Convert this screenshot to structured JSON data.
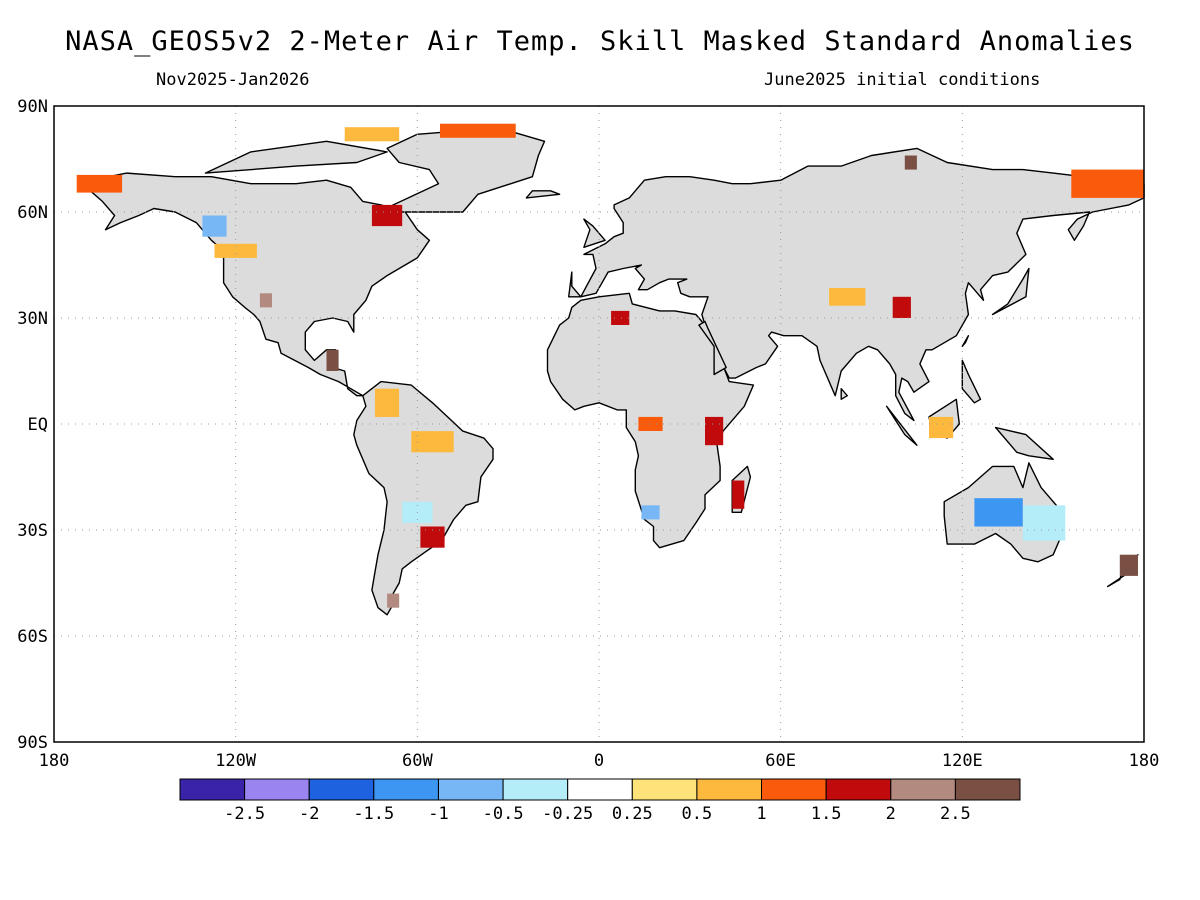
{
  "title": "NASA_GEOS5v2 2-Meter Air Temp. Skill Masked Standard Anomalies",
  "subtitle_left": "Nov2025-Jan2026",
  "subtitle_right": "June2025 initial conditions",
  "map": {
    "projection": "cylindrical equidistant",
    "lon_range": [
      -180,
      180
    ],
    "lat_range": [
      -90,
      90
    ],
    "gridlines": "dotted",
    "land_color": "#dcdcdc",
    "lat_ticks": [
      {
        "label": "90N",
        "lat": 90
      },
      {
        "label": "60N",
        "lat": 60
      },
      {
        "label": "30N",
        "lat": 30
      },
      {
        "label": "EQ",
        "lat": 0
      },
      {
        "label": "30S",
        "lat": -30
      },
      {
        "label": "60S",
        "lat": -60
      },
      {
        "label": "90S",
        "lat": -90
      }
    ],
    "lon_ticks": [
      {
        "label": "180",
        "lon": -180
      },
      {
        "label": "120W",
        "lon": -120
      },
      {
        "label": "60W",
        "lon": -60
      },
      {
        "label": "0",
        "lon": 0
      },
      {
        "label": "60E",
        "lon": 60
      },
      {
        "label": "120E",
        "lon": 120
      },
      {
        "label": "180",
        "lon": 180
      }
    ]
  },
  "colorbar": {
    "colors": [
      "#3a23a8",
      "#9a85f0",
      "#1f62e0",
      "#3d96f2",
      "#77b7f5",
      "#b4ecf8",
      "#ffffff",
      "#fde37a",
      "#fdb93d",
      "#fa5a0c",
      "#c00a0c",
      "#b28a80",
      "#7a5044"
    ],
    "labels": [
      "-2.5",
      "-2",
      "-1.5",
      "-1",
      "-0.5",
      "-0.25",
      "0.25",
      "0.5",
      "1",
      "1.5",
      "2",
      "2.5"
    ]
  },
  "anomaly_regions": [
    {
      "lon": -75,
      "lat": 82,
      "w": 18,
      "h": 4,
      "level": "0.5"
    },
    {
      "lon": -40,
      "lat": 83,
      "w": 25,
      "h": 4,
      "level": "1"
    },
    {
      "lon": -165,
      "lat": 68,
      "w": 15,
      "h": 5,
      "level": "1"
    },
    {
      "lon": -127,
      "lat": 56,
      "w": 8,
      "h": 6,
      "level": "-0.5"
    },
    {
      "lon": -120,
      "lat": 49,
      "w": 14,
      "h": 4,
      "level": "0.5"
    },
    {
      "lon": -110,
      "lat": 35,
      "w": 4,
      "h": 4,
      "level": "2"
    },
    {
      "lon": -88,
      "lat": 18,
      "w": 4,
      "h": 6,
      "level": "2.5"
    },
    {
      "lon": -70,
      "lat": 59,
      "w": 10,
      "h": 6,
      "level": "1.5"
    },
    {
      "lon": -70,
      "lat": 6,
      "w": 8,
      "h": 8,
      "level": "0.5"
    },
    {
      "lon": -55,
      "lat": -5,
      "w": 14,
      "h": 6,
      "level": "0.5"
    },
    {
      "lon": -60,
      "lat": -25,
      "w": 10,
      "h": 6,
      "level": "-0.25"
    },
    {
      "lon": -55,
      "lat": -32,
      "w": 8,
      "h": 6,
      "level": "1.5"
    },
    {
      "lon": -68,
      "lat": -50,
      "w": 4,
      "h": 4,
      "level": "2"
    },
    {
      "lon": 7,
      "lat": 30,
      "w": 6,
      "h": 4,
      "level": "1.5"
    },
    {
      "lon": 17,
      "lat": 0,
      "w": 8,
      "h": 4,
      "level": "1"
    },
    {
      "lon": 38,
      "lat": -2,
      "w": 6,
      "h": 8,
      "level": "1.5"
    },
    {
      "lon": 46,
      "lat": -20,
      "w": 4,
      "h": 8,
      "level": "1.5"
    },
    {
      "lon": 17,
      "lat": -25,
      "w": 6,
      "h": 4,
      "level": "-0.5"
    },
    {
      "lon": 82,
      "lat": 36,
      "w": 12,
      "h": 5,
      "level": "0.5"
    },
    {
      "lon": 100,
      "lat": 33,
      "w": 6,
      "h": 6,
      "level": "1.5"
    },
    {
      "lon": 113,
      "lat": -1,
      "w": 8,
      "h": 6,
      "level": "0.5"
    },
    {
      "lon": 132,
      "lat": -25,
      "w": 16,
      "h": 8,
      "level": "-1"
    },
    {
      "lon": 147,
      "lat": -28,
      "w": 14,
      "h": 10,
      "level": "-0.25"
    },
    {
      "lon": 168,
      "lat": 68,
      "w": 24,
      "h": 8,
      "level": "1"
    },
    {
      "lon": 103,
      "lat": 74,
      "w": 4,
      "h": 4,
      "level": "2.5"
    },
    {
      "lon": 175,
      "lat": -40,
      "w": 6,
      "h": 6,
      "level": "2.5"
    }
  ]
}
